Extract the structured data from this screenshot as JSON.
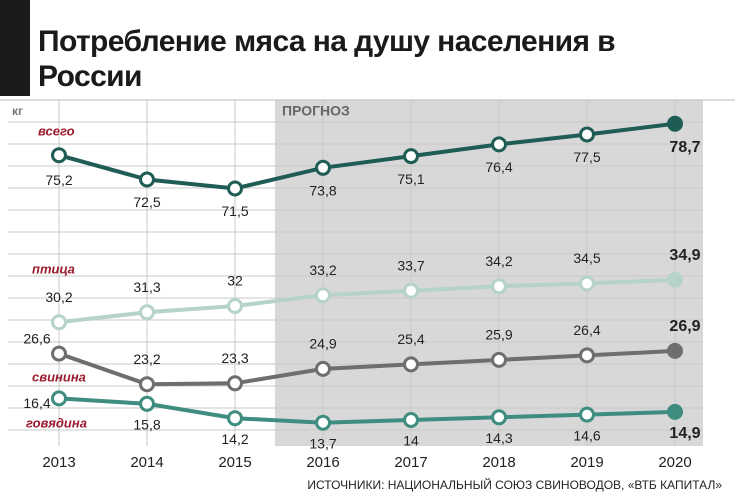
{
  "chart_data": {
    "type": "line",
    "title": "Потребление мяса на душу населения в России",
    "unit": "кг",
    "annotation": "ПРОГНОЗ",
    "source": "ИСТОЧНИКИ: НАЦИОНАЛЬНЫЙ СОЮЗ СВИНОВОДОВ, «ВТБ КАПИТАЛ»",
    "categories": [
      "2013",
      "2014",
      "2015",
      "2016",
      "2017",
      "2018",
      "2019",
      "2020"
    ],
    "series": [
      {
        "name": "всего",
        "color": "#1f5c56",
        "values": [
          75.2,
          72.5,
          71.5,
          73.8,
          75.1,
          76.4,
          77.5,
          78.7
        ],
        "value_labels": [
          "75,2",
          "72,5",
          "71,5",
          "73,8",
          "75,1",
          "76,4",
          "77,5",
          "78,7"
        ]
      },
      {
        "name": "птица",
        "color": "#b5d2cb",
        "values": [
          30.2,
          31.3,
          32,
          33.2,
          33.7,
          34.2,
          34.5,
          34.9
        ],
        "value_labels": [
          "30,2",
          "31,3",
          "32",
          "33,2",
          "33,7",
          "34,2",
          "34,5",
          "34,9"
        ]
      },
      {
        "name": "свинина",
        "color": "#6e6e6e",
        "values": [
          26.6,
          23.2,
          23.3,
          24.9,
          25.4,
          25.9,
          26.4,
          26.9
        ],
        "value_labels": [
          "26,6",
          "23,2",
          "23,3",
          "24,9",
          "25,4",
          "25,9",
          "26,4",
          "26,9"
        ]
      },
      {
        "name": "говядина",
        "color": "#3f8c80",
        "values": [
          16.4,
          15.8,
          14.2,
          13.7,
          14,
          14.3,
          14.6,
          14.9
        ],
        "value_labels": [
          "16,4",
          "15,8",
          "14,2",
          "13,7",
          "14",
          "14,3",
          "14,6",
          "14,9"
        ]
      }
    ]
  }
}
